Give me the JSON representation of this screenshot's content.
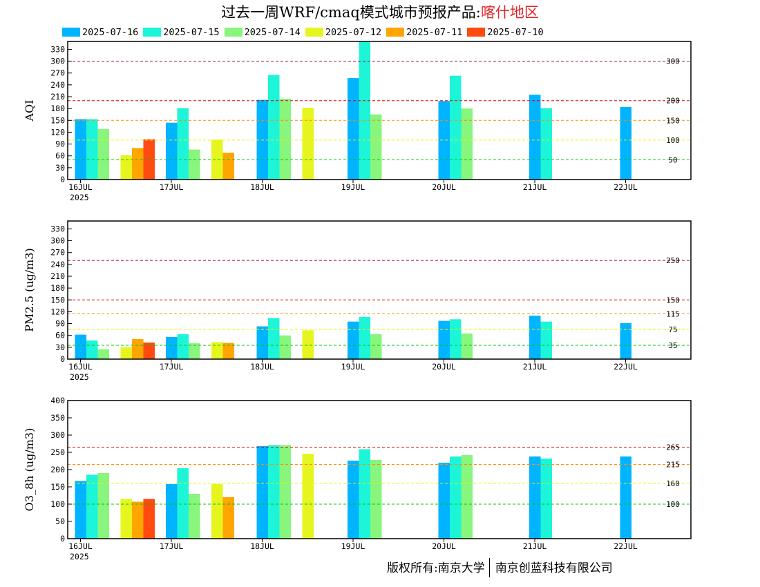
{
  "header": {
    "title_prefix": "过去一周WRF/cmaq模式城市预报产品:",
    "title_city": "喀什地区"
  },
  "colors": {
    "2025-07-16": "#00b4ff",
    "2025-07-15": "#1cf5d8",
    "2025-07-14": "#88f57c",
    "2025-07-12": "#e6f51e",
    "2025-07-11": "#ffa500",
    "2025-07-10": "#ff4a12"
  },
  "footer": {
    "left": "版权所有:南京大学",
    "right": "南京创蓝科技有限公司"
  },
  "chart_data": [
    {
      "type": "bar",
      "ylabel": "AQI",
      "x_tick_labels": [
        "16JUL",
        "17JUL",
        "18JUL",
        "19JUL",
        "20JUL",
        "21JUL",
        "22JUL"
      ],
      "year_label": "2025",
      "ylim": [
        0,
        350
      ],
      "yticks": [
        0,
        30,
        60,
        90,
        120,
        150,
        180,
        210,
        240,
        270,
        300,
        330
      ],
      "threshold_lines": [
        {
          "value": 50,
          "label": "50",
          "color": "#00c800"
        },
        {
          "value": 100,
          "label": "100",
          "color": "#f0f000"
        },
        {
          "value": 150,
          "label": "150",
          "color": "#ff8c00"
        },
        {
          "value": 200,
          "label": "200",
          "color": "#e00000"
        },
        {
          "value": 300,
          "label": "300",
          "color": "#a00040"
        }
      ],
      "series": [
        {
          "name": "2025-07-16",
          "x": [
            0,
            1,
            2,
            3,
            4,
            5,
            6
          ],
          "values": [
            153,
            144,
            202,
            257,
            199,
            215,
            184
          ]
        },
        {
          "name": "2025-07-15",
          "x": [
            0,
            1,
            2,
            3,
            4,
            5
          ],
          "values": [
            153,
            181,
            265,
            350,
            263,
            181
          ]
        },
        {
          "name": "2025-07-14",
          "x": [
            0,
            1,
            2,
            3,
            4
          ],
          "values": [
            128,
            76,
            205,
            165,
            180
          ]
        },
        {
          "name": "2025-07-12",
          "x": [
            0,
            1,
            2
          ],
          "values": [
            62,
            101,
            182
          ]
        },
        {
          "name": "2025-07-11",
          "x": [
            0,
            1
          ],
          "values": [
            80,
            68
          ]
        },
        {
          "name": "2025-07-10",
          "x": [
            0
          ],
          "values": [
            102
          ]
        }
      ]
    },
    {
      "type": "bar",
      "ylabel": "PM2.5 (ug/m3)",
      "x_tick_labels": [
        "16JUL",
        "17JUL",
        "18JUL",
        "19JUL",
        "20JUL",
        "21JUL",
        "22JUL"
      ],
      "year_label": "2025",
      "ylim": [
        0,
        350
      ],
      "yticks": [
        0,
        30,
        60,
        90,
        120,
        150,
        180,
        210,
        240,
        270,
        300,
        330
      ],
      "threshold_lines": [
        {
          "value": 35,
          "label": "35",
          "color": "#00c800"
        },
        {
          "value": 75,
          "label": "75",
          "color": "#f0f000"
        },
        {
          "value": 115,
          "label": "115",
          "color": "#ff8c00"
        },
        {
          "value": 150,
          "label": "150",
          "color": "#e00000"
        },
        {
          "value": 250,
          "label": "250",
          "color": "#a00040"
        }
      ],
      "series": [
        {
          "name": "2025-07-16",
          "x": [
            0,
            1,
            2,
            3,
            4,
            5,
            6
          ],
          "values": [
            62,
            56,
            83,
            95,
            97,
            110,
            91
          ]
        },
        {
          "name": "2025-07-15",
          "x": [
            0,
            1,
            2,
            3,
            4,
            5
          ],
          "values": [
            47,
            63,
            104,
            107,
            101,
            95
          ]
        },
        {
          "name": "2025-07-14",
          "x": [
            0,
            1,
            2,
            3,
            4
          ],
          "values": [
            25,
            40,
            60,
            63,
            65
          ]
        },
        {
          "name": "2025-07-12",
          "x": [
            0,
            1,
            2
          ],
          "values": [
            30,
            43,
            73
          ]
        },
        {
          "name": "2025-07-11",
          "x": [
            0,
            1
          ],
          "values": [
            51,
            41
          ]
        },
        {
          "name": "2025-07-10",
          "x": [
            0
          ],
          "values": [
            42
          ]
        }
      ]
    },
    {
      "type": "bar",
      "ylabel": "O3_8h (ug/m3)",
      "x_tick_labels": [
        "16JUL",
        "17JUL",
        "18JUL",
        "19JUL",
        "20JUL",
        "21JUL",
        "22JUL"
      ],
      "year_label": "2025",
      "ylim": [
        0,
        400
      ],
      "yticks": [
        0,
        50,
        100,
        150,
        200,
        250,
        300,
        350,
        400
      ],
      "threshold_lines": [
        {
          "value": 100,
          "label": "100",
          "color": "#00c800"
        },
        {
          "value": 160,
          "label": "160",
          "color": "#f0f000"
        },
        {
          "value": 215,
          "label": "215",
          "color": "#ff8c00"
        },
        {
          "value": 265,
          "label": "265",
          "color": "#e00000"
        }
      ],
      "series": [
        {
          "name": "2025-07-16",
          "x": [
            0,
            1,
            2,
            3,
            4,
            5,
            6
          ],
          "values": [
            167,
            158,
            268,
            226,
            220,
            238,
            238
          ]
        },
        {
          "name": "2025-07-15",
          "x": [
            0,
            1,
            2,
            3,
            4,
            5
          ],
          "values": [
            185,
            204,
            271,
            259,
            238,
            232
          ]
        },
        {
          "name": "2025-07-14",
          "x": [
            0,
            1,
            2,
            3,
            4
          ],
          "values": [
            190,
            130,
            271,
            228,
            242
          ]
        },
        {
          "name": "2025-07-12",
          "x": [
            0,
            1,
            2
          ],
          "values": [
            115,
            158,
            246
          ]
        },
        {
          "name": "2025-07-11",
          "x": [
            0,
            1
          ],
          "values": [
            107,
            120
          ]
        },
        {
          "name": "2025-07-10",
          "x": [
            0
          ],
          "values": [
            115
          ]
        }
      ]
    }
  ]
}
